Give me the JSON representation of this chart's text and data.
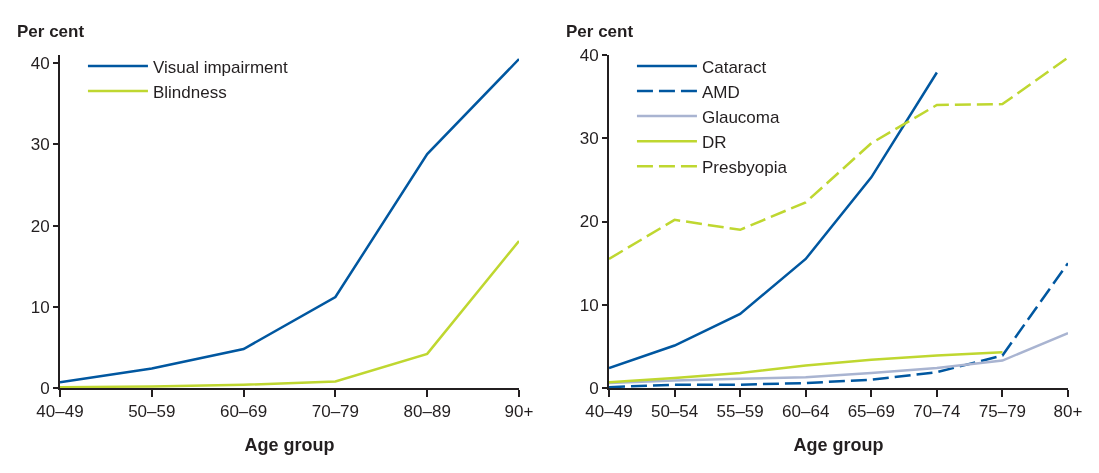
{
  "chart_data": [
    {
      "type": "line",
      "xlabel": "Age group",
      "ylabel": "Per cent",
      "categories": [
        "40–49",
        "50–59",
        "60–69",
        "70–79",
        "80–89",
        "90+"
      ],
      "ylim": [
        0,
        41
      ],
      "yticks": [
        0,
        10,
        20,
        30,
        40
      ],
      "grid": false,
      "legend": "top left",
      "marker": "none",
      "series": [
        {
          "name": "Visual impairment",
          "color": "#0057a0",
          "line_style": "solid",
          "values": [
            0.7,
            2.4,
            4.8,
            11.2,
            28.8,
            40.5
          ]
        },
        {
          "name": "Blindness",
          "color": "#bfd730",
          "line_style": "solid",
          "values": [
            0.1,
            0.2,
            0.4,
            0.8,
            4.2,
            18.1
          ]
        }
      ]
    },
    {
      "type": "line",
      "xlabel": "Age group",
      "ylabel": "Per cent",
      "categories": [
        "40–49",
        "50–54",
        "55–59",
        "60–64",
        "65–69",
        "70–74",
        "75–79",
        "80+"
      ],
      "ylim": [
        0,
        40
      ],
      "yticks": [
        0,
        10,
        20,
        30,
        40
      ],
      "grid": false,
      "legend": "top left",
      "marker": "none",
      "series": [
        {
          "name": "Cataract",
          "color": "#0057a0",
          "line_style": "solid",
          "values": [
            2.4,
            5.1,
            8.9,
            15.5,
            25.3,
            37.9,
            null,
            null
          ]
        },
        {
          "name": "AMD",
          "color": "#0057a0",
          "line_style": "dashed",
          "values": [
            0.1,
            0.4,
            0.4,
            0.6,
            1.0,
            1.9,
            3.9,
            15.0
          ]
        },
        {
          "name": "Glaucoma",
          "color": "#a9b4d1",
          "line_style": "solid",
          "values": [
            0.6,
            0.9,
            1.1,
            1.3,
            1.8,
            2.4,
            3.3,
            6.6
          ]
        },
        {
          "name": "DR",
          "color": "#bfd730",
          "line_style": "solid",
          "values": [
            0.7,
            1.2,
            1.8,
            2.7,
            3.4,
            3.9,
            4.3,
            null
          ]
        },
        {
          "name": "Presbyopia",
          "color": "#bfd730",
          "line_style": "dashed",
          "values": [
            15.5,
            20.2,
            19.0,
            22.3,
            29.4,
            34.0,
            34.1,
            39.7
          ]
        }
      ]
    }
  ]
}
